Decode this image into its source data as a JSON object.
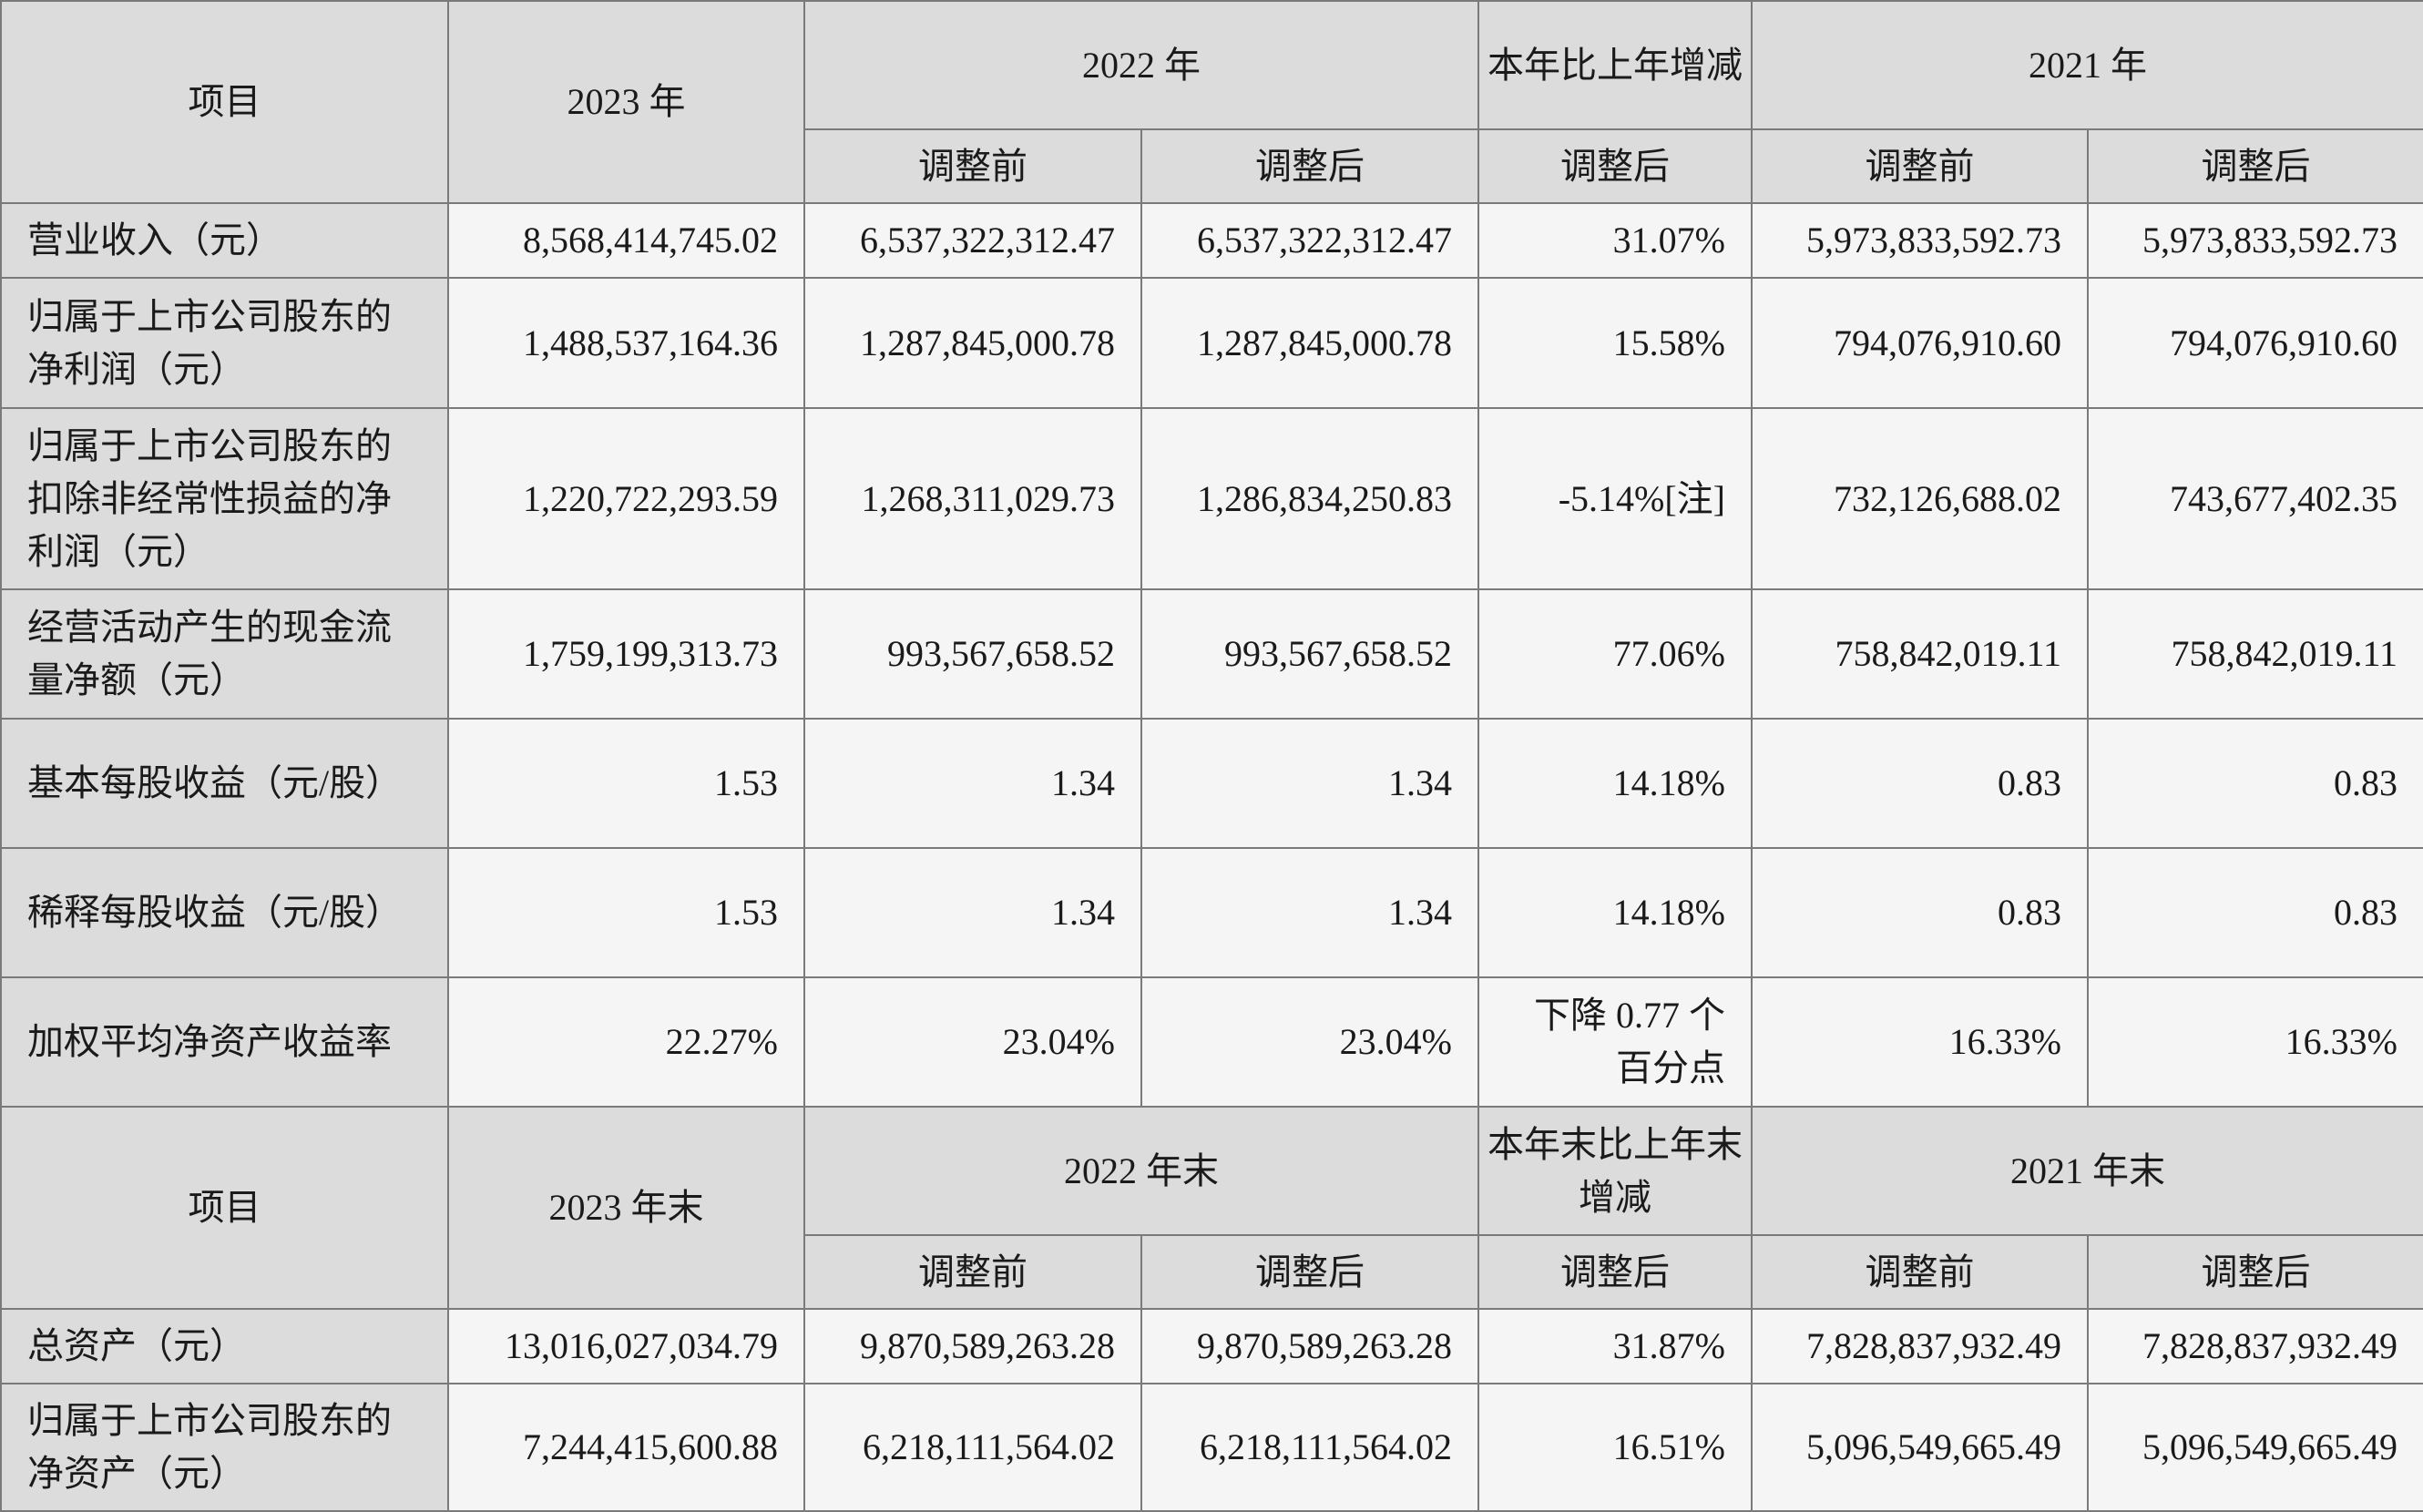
{
  "header_top": {
    "item": "项目",
    "current_year": "2023 年",
    "prior_year": "2022 年",
    "change": "本年比上年增减",
    "earlier_year": "2021 年"
  },
  "subheader": {
    "before": "调整前",
    "after": "调整后"
  },
  "rows_top": [
    {
      "label": "营业收入（元）",
      "y2023": "8,568,414,745.02",
      "y2022_before": "6,537,322,312.47",
      "y2022_after": "6,537,322,312.47",
      "change": "31.07%",
      "y2021_before": "5,973,833,592.73",
      "y2021_after": "5,973,833,592.73"
    },
    {
      "label": "归属于上市公司股东的净利润（元）",
      "y2023": "1,488,537,164.36",
      "y2022_before": "1,287,845,000.78",
      "y2022_after": "1,287,845,000.78",
      "change": "15.58%",
      "y2021_before": "794,076,910.60",
      "y2021_after": "794,076,910.60"
    },
    {
      "label": "归属于上市公司股东的扣除非经常性损益的净利润（元）",
      "y2023": "1,220,722,293.59",
      "y2022_before": "1,268,311,029.73",
      "y2022_after": "1,286,834,250.83",
      "change": "-5.14%[注]",
      "y2021_before": "732,126,688.02",
      "y2021_after": "743,677,402.35"
    },
    {
      "label": "经营活动产生的现金流量净额（元）",
      "y2023": "1,759,199,313.73",
      "y2022_before": "993,567,658.52",
      "y2022_after": "993,567,658.52",
      "change": "77.06%",
      "y2021_before": "758,842,019.11",
      "y2021_after": "758,842,019.11"
    },
    {
      "label": "基本每股收益（元/股）",
      "y2023": "1.53",
      "y2022_before": "1.34",
      "y2022_after": "1.34",
      "change": "14.18%",
      "y2021_before": "0.83",
      "y2021_after": "0.83"
    },
    {
      "label": "稀释每股收益（元/股）",
      "y2023": "1.53",
      "y2022_before": "1.34",
      "y2022_after": "1.34",
      "change": "14.18%",
      "y2021_before": "0.83",
      "y2021_after": "0.83"
    },
    {
      "label": "加权平均净资产收益率",
      "y2023": "22.27%",
      "y2022_before": "23.04%",
      "y2022_after": "23.04%",
      "change": "下降 0.77 个百分点",
      "y2021_before": "16.33%",
      "y2021_after": "16.33%"
    }
  ],
  "header_bottom": {
    "item": "项目",
    "current_year": "2023 年末",
    "prior_year": "2022 年末",
    "change": "本年末比上年末增减",
    "earlier_year": "2021 年末"
  },
  "rows_bottom": [
    {
      "label": "总资产（元）",
      "y2023": "13,016,027,034.79",
      "y2022_before": "9,870,589,263.28",
      "y2022_after": "9,870,589,263.28",
      "change": "31.87%",
      "y2021_before": "7,828,837,932.49",
      "y2021_after": "7,828,837,932.49"
    },
    {
      "label": "归属于上市公司股东的净资产（元）",
      "y2023": "7,244,415,600.88",
      "y2022_before": "6,218,111,564.02",
      "y2022_after": "6,218,111,564.02",
      "change": "16.51%",
      "y2021_before": "5,096,549,665.49",
      "y2021_after": "5,096,549,665.49"
    }
  ]
}
